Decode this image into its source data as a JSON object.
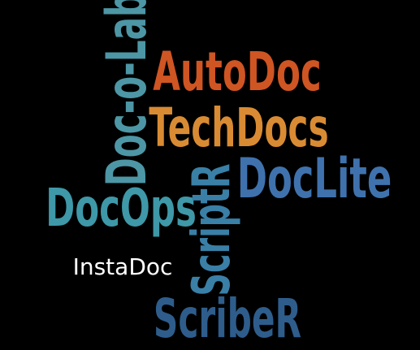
{
  "background": "#000000",
  "words": [
    {
      "id": "doc-o-lab",
      "text": "Doc-o-Lab",
      "color": "#4d96a5",
      "orientation": "vertical"
    },
    {
      "id": "autodoc",
      "text": "AutoDoc",
      "color": "#cf5523",
      "orientation": "horizontal"
    },
    {
      "id": "techdocs",
      "text": "TechDocs",
      "color": "#d98b33",
      "orientation": "horizontal"
    },
    {
      "id": "doclite",
      "text": "DocLite",
      "color": "#3f72ad",
      "orientation": "horizontal"
    },
    {
      "id": "docops",
      "text": "DocOps",
      "color": "#3e98a8",
      "orientation": "horizontal"
    },
    {
      "id": "scriptr",
      "text": "ScriptR",
      "color": "#3a7fa6",
      "orientation": "vertical"
    },
    {
      "id": "instadoc",
      "text": "InstaDoc",
      "color": "#ffffff",
      "orientation": "horizontal"
    },
    {
      "id": "scriber",
      "text": "ScribeR",
      "color": "#2e5d8c",
      "orientation": "horizontal"
    }
  ]
}
